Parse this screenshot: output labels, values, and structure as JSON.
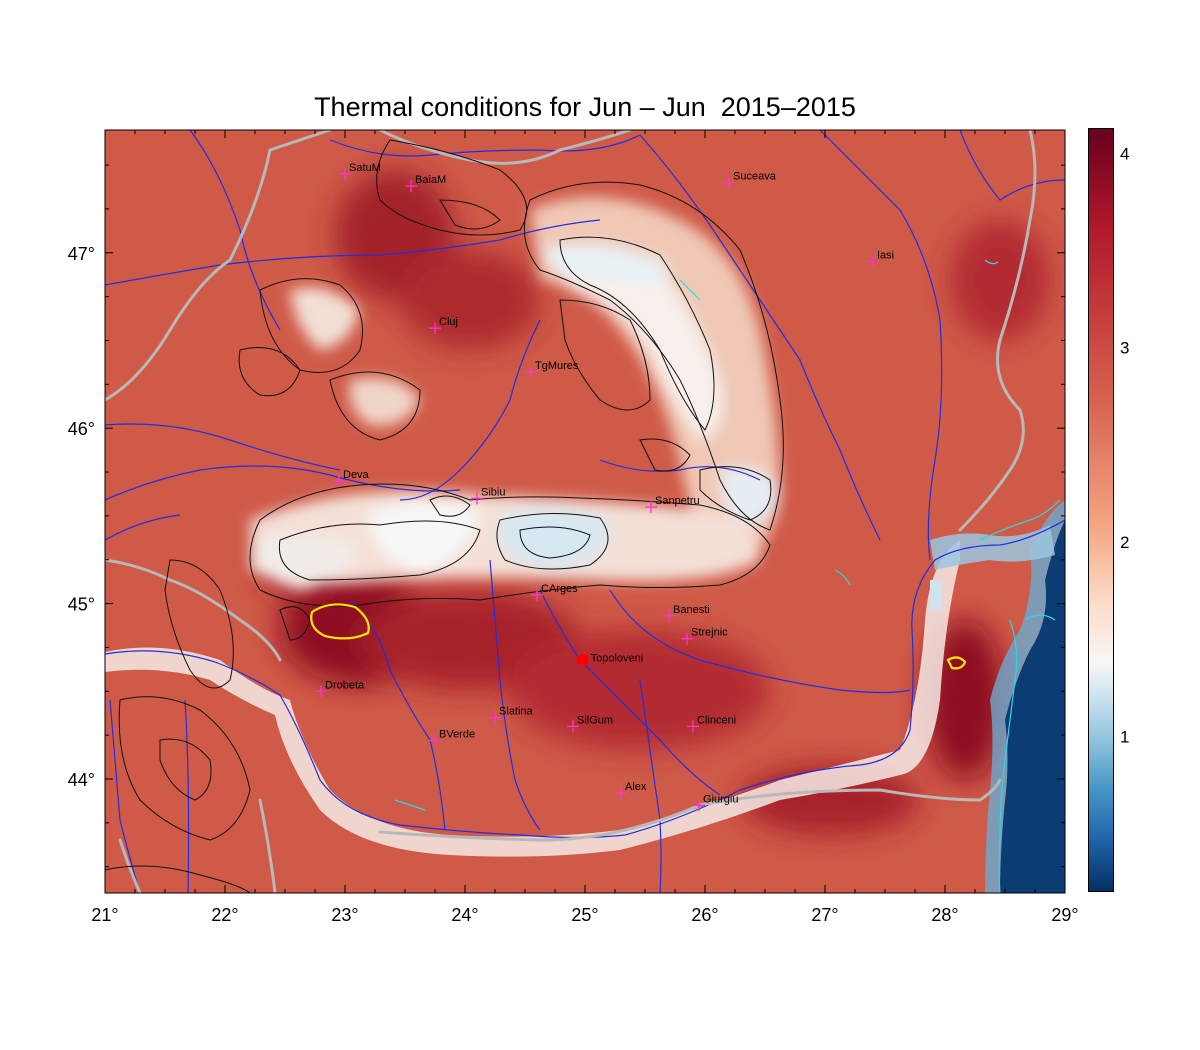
{
  "title": "Thermal conditions for Jun – Jun  2015–2015",
  "colors": {
    "background": "#ffffff",
    "land_warm": "#cf5a48",
    "land_hot": "#a81c2a",
    "mountain_cool": "#f4f4f4",
    "cold": "#8fc3de",
    "sea": "#0c3c74",
    "rivers": "#1f2fe0",
    "borders": "#b8b8b8",
    "contours": "#111111",
    "highlight_contour": "#ffe600",
    "coastal_lines": "#29d9e6",
    "city_marker": "#ff33cc",
    "reference_marker": "#ff0000"
  },
  "map": {
    "lon_range": [
      21,
      29
    ],
    "lat_range": [
      43.35,
      47.7
    ],
    "x_ticks": [
      "21°",
      "22°",
      "23°",
      "24°",
      "25°",
      "26°",
      "27°",
      "28°",
      "29°"
    ],
    "y_ticks": [
      "44°",
      "45°",
      "46°",
      "47°"
    ],
    "cities": [
      {
        "name": "SatuM",
        "lon": 23.0,
        "lat": 47.45
      },
      {
        "name": "BaiaM",
        "lon": 23.55,
        "lat": 47.38
      },
      {
        "name": "Suceava",
        "lon": 26.2,
        "lat": 47.4
      },
      {
        "name": "Iasi",
        "lon": 27.4,
        "lat": 46.95
      },
      {
        "name": "Cluj",
        "lon": 23.75,
        "lat": 46.57
      },
      {
        "name": "TgMures",
        "lon": 24.55,
        "lat": 46.32
      },
      {
        "name": "Deva",
        "lon": 22.95,
        "lat": 45.7
      },
      {
        "name": "Sibiu",
        "lon": 24.1,
        "lat": 45.6
      },
      {
        "name": "Sanpetru",
        "lon": 25.55,
        "lat": 45.55
      },
      {
        "name": "CArges",
        "lon": 24.6,
        "lat": 45.05
      },
      {
        "name": "Banesti",
        "lon": 25.7,
        "lat": 44.93
      },
      {
        "name": "Strejnic",
        "lon": 25.85,
        "lat": 44.8
      },
      {
        "name": "Drobeta",
        "lon": 22.8,
        "lat": 44.5
      },
      {
        "name": "Slatina",
        "lon": 24.25,
        "lat": 44.35
      },
      {
        "name": "SilGum",
        "lon": 24.9,
        "lat": 44.3
      },
      {
        "name": "Clinceni",
        "lon": 25.9,
        "lat": 44.3
      },
      {
        "name": "BVerde",
        "lon": 23.75,
        "lat": 44.22
      },
      {
        "name": "Alex",
        "lon": 25.3,
        "lat": 43.92
      },
      {
        "name": "Giurgiu",
        "lon": 25.95,
        "lat": 43.85
      }
    ],
    "reference_point": {
      "name": "Topoloveni",
      "lon": 24.98,
      "lat": 44.68
    }
  },
  "colorbar": {
    "min": 0.2,
    "max": 4.13,
    "tick_values": [
      1,
      2,
      3,
      4
    ],
    "tick_labels": [
      "1",
      "2",
      "3",
      "4"
    ]
  }
}
